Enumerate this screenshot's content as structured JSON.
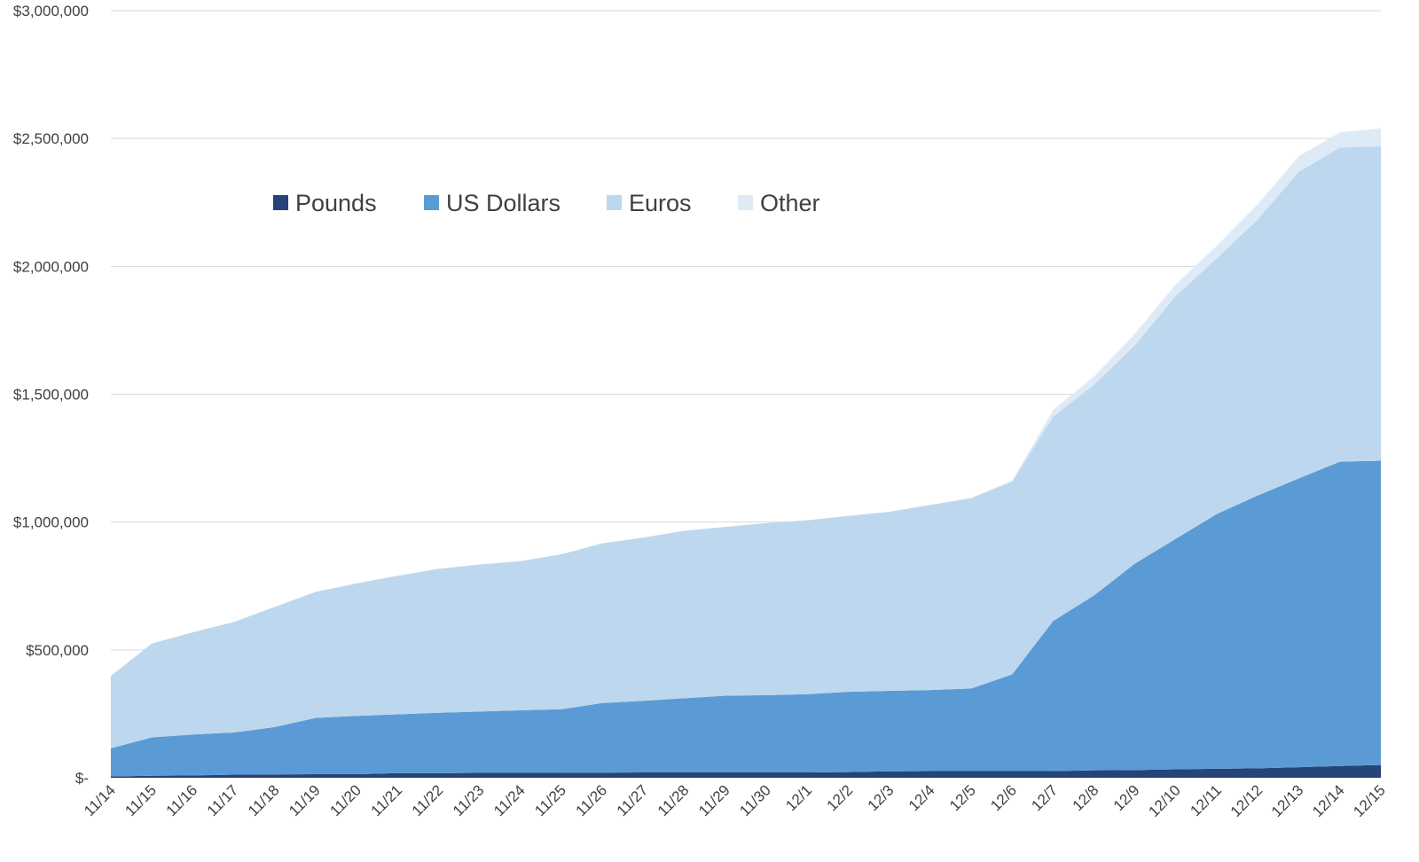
{
  "chart_data": {
    "type": "area",
    "stacked": true,
    "title": "",
    "xlabel": "",
    "ylabel": "",
    "x": [
      "11/14",
      "11/15",
      "11/16",
      "11/17",
      "11/18",
      "11/19",
      "11/20",
      "11/21",
      "11/22",
      "11/23",
      "11/24",
      "11/25",
      "11/26",
      "11/27",
      "11/28",
      "11/29",
      "11/30",
      "12/1",
      "12/2",
      "12/3",
      "12/4",
      "12/5",
      "12/6",
      "12/7",
      "12/8",
      "12/9",
      "12/10",
      "12/11",
      "12/12",
      "12/13",
      "12/14",
      "12/15"
    ],
    "ylim": [
      0,
      3000000
    ],
    "yticks": [
      0,
      500000,
      1000000,
      1500000,
      2000000,
      2500000,
      3000000
    ],
    "ytick_labels": [
      "$-",
      "$500,000",
      "$1,000,000",
      "$1,500,000",
      "$2,000,000",
      "$2,500,000",
      "$3,000,000"
    ],
    "grid": true,
    "legend_position": "top-left",
    "series": [
      {
        "name": "Pounds",
        "color": "#264478",
        "values": [
          5000,
          8000,
          9000,
          12000,
          13000,
          14000,
          14000,
          18000,
          18000,
          19000,
          19000,
          19000,
          20000,
          21000,
          21000,
          21000,
          21000,
          21000,
          22000,
          25000,
          26000,
          26000,
          26000,
          26000,
          29000,
          30000,
          33000,
          35000,
          37000,
          41000,
          46000,
          50000
        ]
      },
      {
        "name": "US Dollars",
        "color": "#5b9bd5",
        "values": [
          110000,
          150000,
          160000,
          165000,
          185000,
          220000,
          228000,
          230000,
          236000,
          240000,
          245000,
          249000,
          272000,
          280000,
          290000,
          300000,
          302000,
          306000,
          314000,
          315000,
          317000,
          323000,
          378000,
          587000,
          684000,
          808000,
          902000,
          997000,
          1067000,
          1130000,
          1190000,
          1190000
        ]
      },
      {
        "name": "Euros",
        "color": "#bdd7ee",
        "values": [
          283000,
          367000,
          400000,
          432000,
          470000,
          493000,
          518000,
          542000,
          563000,
          575000,
          583000,
          606000,
          625000,
          638000,
          655000,
          660000,
          673000,
          680000,
          688000,
          700000,
          724000,
          744000,
          754000,
          800000,
          824000,
          855000,
          950000,
          1000000,
          1080000,
          1200000,
          1228000,
          1230000
        ]
      },
      {
        "name": "Other",
        "color": "#deebf7",
        "values": [
          0,
          0,
          0,
          0,
          0,
          0,
          0,
          0,
          0,
          0,
          0,
          0,
          0,
          0,
          0,
          0,
          0,
          0,
          0,
          0,
          0,
          2000,
          4000,
          25000,
          33000,
          44000,
          45000,
          50000,
          60000,
          60000,
          60000,
          70000
        ]
      }
    ]
  }
}
